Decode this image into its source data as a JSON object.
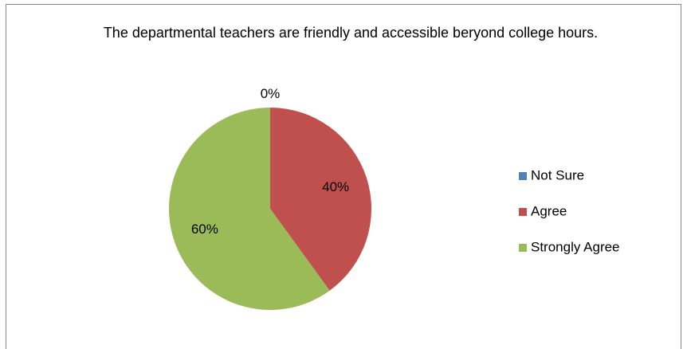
{
  "chart_data": {
    "type": "pie",
    "title": "The departmental teachers are friendly and accessible beryond college hours.",
    "categories": [
      "Not Sure",
      "Agree",
      "Strongly Agree"
    ],
    "values": [
      0,
      40,
      60
    ],
    "value_labels": [
      "0%",
      "40%",
      "60%"
    ],
    "colors": [
      "#4f81bd",
      "#c0504d",
      "#9bbb59"
    ],
    "legend": "right"
  }
}
